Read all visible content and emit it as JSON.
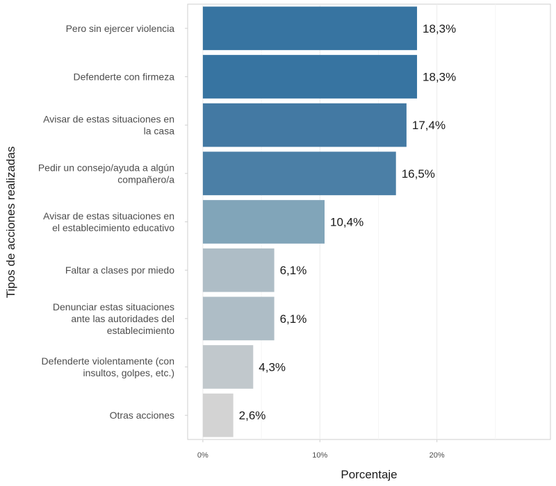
{
  "chart_data": {
    "type": "bar",
    "orientation": "horizontal",
    "categories": [
      "Pero sin ejercer violencia",
      "Defenderte con firmeza",
      "Avisar de estas situaciones en la casa",
      "Pedir un consejo/ayuda a algún compañero/a",
      "Avisar de estas situaciones en el establecimiento educativo",
      "Faltar a clases por miedo",
      "Denunciar estas situaciones ante las autoridades del establecimiento",
      "Defenderte violentamente (con insultos, golpes, etc.)",
      "Otras acciones"
    ],
    "category_lines": [
      [
        "Pero sin ejercer violencia"
      ],
      [
        "Defenderte con firmeza"
      ],
      [
        "Avisar de estas situaciones en",
        "la casa"
      ],
      [
        "Pedir un consejo/ayuda a algún",
        "compañero/a"
      ],
      [
        "Avisar de estas situaciones en",
        "el establecimiento educativo"
      ],
      [
        "Faltar a clases por miedo"
      ],
      [
        "Denunciar estas situaciones",
        "ante las autoridades del",
        "establecimiento"
      ],
      [
        "Defenderte violentamente (con",
        "insultos, golpes, etc.)"
      ],
      [
        "Otras acciones"
      ]
    ],
    "values": [
      18.3,
      18.3,
      17.4,
      16.5,
      10.4,
      6.1,
      6.1,
      4.3,
      2.6
    ],
    "value_labels": [
      "18,3%",
      "18,3%",
      "17,4%",
      "16,5%",
      "10,4%",
      "6,1%",
      "6,1%",
      "4,3%",
      "2,6%"
    ],
    "bar_colors": [
      "#3774a1",
      "#3774a1",
      "#4379a3",
      "#4b7fa6",
      "#81a5b9",
      "#aebdc6",
      "#aebdc6",
      "#c1c8cc",
      "#d3d3d3"
    ],
    "x_ticks": [
      0,
      10,
      20
    ],
    "x_tick_labels": [
      "0%",
      "10%",
      "20%"
    ],
    "xlim": [
      -1.3,
      29.7
    ],
    "xlabel": "Porcentaje",
    "ylabel": "Tipos de acciones realizadas",
    "grid": true,
    "panel_border": true
  }
}
